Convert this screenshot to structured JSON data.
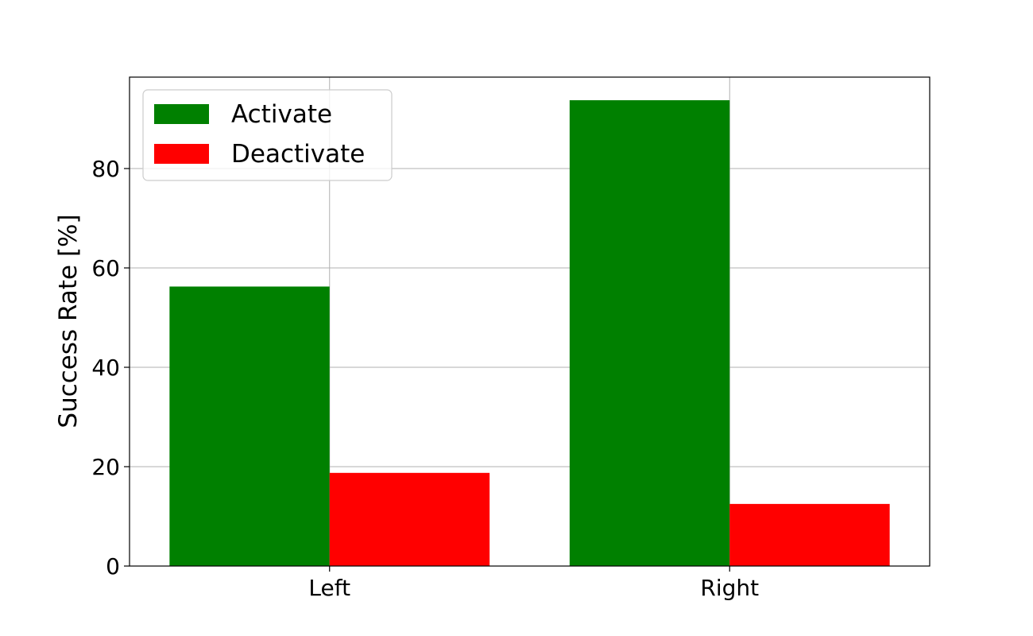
{
  "chart_data": {
    "type": "bar",
    "categories": [
      "Left",
      "Right"
    ],
    "series": [
      {
        "name": "Activate",
        "color": "#008000",
        "values": [
          56.25,
          93.75
        ]
      },
      {
        "name": "Deactivate",
        "color": "#ff0000",
        "values": [
          18.75,
          12.5
        ]
      }
    ],
    "xlabel": "",
    "ylabel": "Success Rate [%]",
    "ylim": [
      0,
      98.4
    ],
    "yticks": [
      0,
      20,
      40,
      60,
      80
    ],
    "grid": true,
    "legend": "top-left"
  }
}
